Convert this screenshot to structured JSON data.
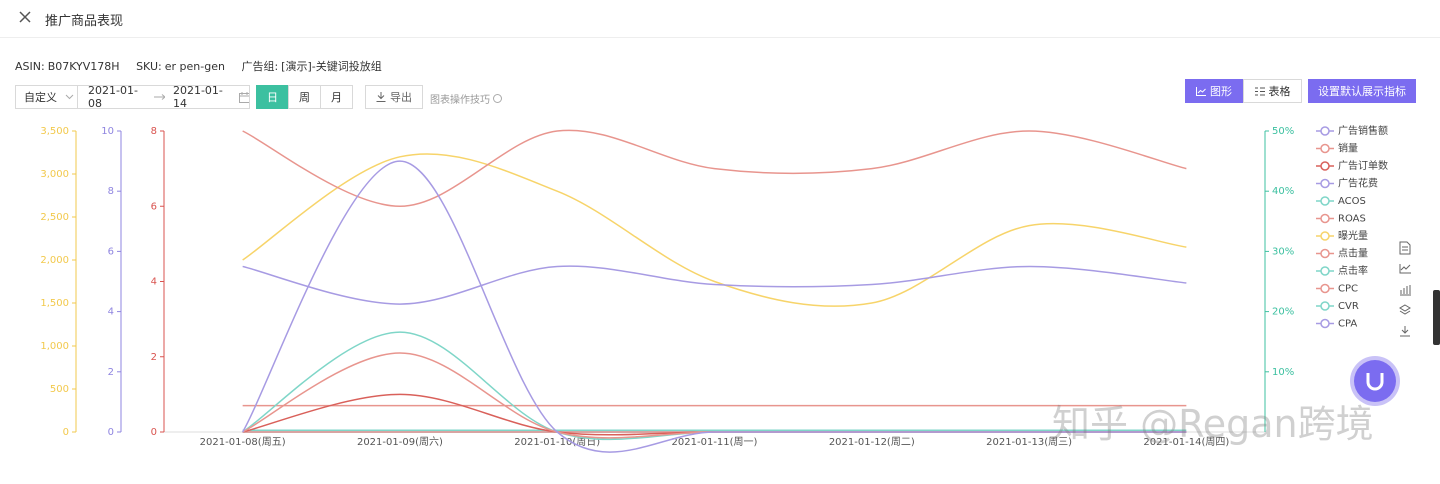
{
  "header": {
    "title": "推广商品表现"
  },
  "info": [
    {
      "label": "ASIN:",
      "value": "B07KYV178H"
    },
    {
      "label": "SKU:",
      "value": "er pen-gen"
    },
    {
      "label": "广告组:",
      "value": "[演示]-关键词投放组"
    }
  ],
  "controls": {
    "range_select": "自定义",
    "start_date": "2021-01-08",
    "end_date": "2021-01-14",
    "granularity": [
      "日",
      "周",
      "月"
    ],
    "export": "导出",
    "tips": "图表操作技巧",
    "view_tabs": [
      "图形",
      "表格"
    ],
    "settings": "设置默认展示指标"
  },
  "watermark": "知乎 @Regan跨境",
  "chart_data": {
    "type": "line",
    "categories": [
      "2021-01-08(周五)",
      "2021-01-09(周六)",
      "2021-01-10(周日)",
      "2021-01-11(周一)",
      "2021-01-12(周二)",
      "2021-01-13(周三)",
      "2021-01-14(周四)"
    ],
    "ylim": [
      0,
      3500
    ],
    "yticks": [
      0,
      500,
      {
        "value": 1000,
        "label": "1,000"
      },
      {
        "value": 1500,
        "label": "1,500"
      },
      {
        "value": 2000,
        "label": "2,000"
      },
      {
        "value": 2500,
        "label": "2,500"
      },
      {
        "value": 3000,
        "label": "3,000"
      },
      {
        "value": 3500,
        "label": "3,500"
      }
    ],
    "y2lim": [
      0,
      10
    ],
    "y2ticks": [
      0,
      2,
      4,
      6,
      8,
      10
    ],
    "y3lim": [
      0,
      8
    ],
    "y3ticks": [
      0,
      2,
      4,
      6,
      8
    ],
    "y4lim": [
      0,
      50
    ],
    "y4ticks": [
      {
        "value": 10,
        "label": "10%"
      },
      {
        "value": 20,
        "label": "20%"
      },
      {
        "value": 30,
        "label": "30%"
      },
      {
        "value": 40,
        "label": "40%"
      },
      {
        "value": 50,
        "label": "50%"
      }
    ],
    "axis_colors": {
      "y": "#f2c94c",
      "y2": "#8f85e0",
      "y3": "#d9534f",
      "y4": "#3cc0a0"
    },
    "series": [
      {
        "name": "广告销售额",
        "color": "#a79be3",
        "axis": "y2",
        "values": [
          0,
          9,
          0,
          0,
          0,
          0,
          0
        ]
      },
      {
        "name": "销量",
        "color": "#e8958e",
        "axis": "y3",
        "values": [
          0,
          2.1,
          0,
          0,
          0,
          0,
          0
        ]
      },
      {
        "name": "广告订单数",
        "color": "#d9605a",
        "axis": "y3",
        "values": [
          0,
          1,
          0,
          0,
          0,
          0,
          0
        ]
      },
      {
        "name": "广告花费",
        "color": "#a79be3",
        "axis": "y2",
        "values": [
          5.5,
          4.25,
          5.5,
          4.9,
          4.9,
          5.5,
          4.95
        ]
      },
      {
        "name": "ACOS",
        "color": "#7fd6c8",
        "axis": "y4",
        "values": [
          0,
          16.6,
          0,
          0,
          0,
          0,
          0
        ]
      },
      {
        "name": "ROAS",
        "color": "#e8958e",
        "axis": "y3",
        "values": [
          8,
          6,
          8,
          7,
          7,
          8,
          7
        ]
      },
      {
        "name": "曝光量",
        "color": "#f7d46a",
        "axis": "y",
        "values": [
          2000,
          3200,
          2800,
          1750,
          1500,
          2400,
          2150
        ]
      },
      {
        "name": "点击量",
        "color": "#e8958e",
        "axis": "y3",
        "values": [
          0.7,
          0.7,
          0.7,
          0.7,
          0.7,
          0.7,
          0.7
        ]
      },
      {
        "name": "点击率",
        "color": "#7fd6c8",
        "axis": "y4",
        "values": [
          0.3,
          0.3,
          0.3,
          0.3,
          0.3,
          0.3,
          0.3
        ]
      },
      {
        "name": "CPC",
        "color": "#e8958e",
        "axis": "y3",
        "values": [
          0,
          0,
          0,
          0,
          0,
          0,
          0
        ]
      },
      {
        "name": "CVR",
        "color": "#7fd6c8",
        "axis": "y4",
        "values": [
          0,
          0,
          0,
          0,
          0,
          0,
          0
        ]
      },
      {
        "name": "CPA",
        "color": "#a79be3",
        "axis": "y2",
        "values": [
          0,
          0,
          0,
          0,
          0,
          0,
          0
        ]
      }
    ]
  }
}
